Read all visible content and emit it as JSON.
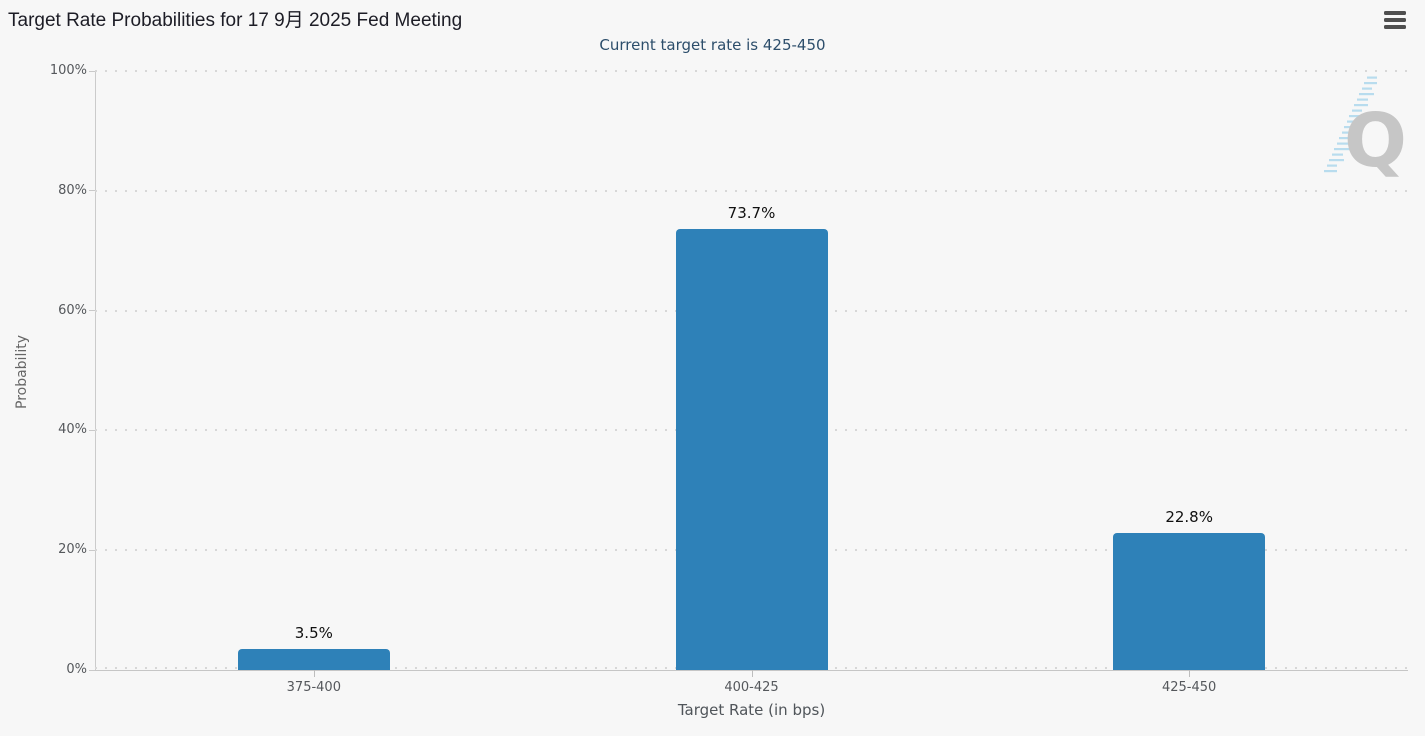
{
  "header": {
    "menu_icon": "hamburger"
  },
  "chart_data": {
    "type": "bar",
    "title": "Target Rate Probabilities for 17 9月 2025 Fed Meeting",
    "subtitle": "Current target rate is 425-450",
    "categories": [
      "375-400",
      "400-425",
      "425-450"
    ],
    "values": [
      3.5,
      73.7,
      22.8
    ],
    "value_labels": [
      "3.5%",
      "73.7%",
      "22.8%"
    ],
    "xlabel": "Target Rate (in bps)",
    "ylabel": "Probability",
    "ylim": [
      0,
      100
    ],
    "ytick_labels": [
      "0%",
      "20%",
      "40%",
      "60%",
      "80%",
      "100%"
    ],
    "grid": "horizontal-dotted",
    "legend": "none",
    "bar_color": "#2e81b8",
    "grid_color": "#d7d7d7",
    "background_color": "#f7f7f7"
  },
  "watermark": {
    "letter": "Q"
  }
}
